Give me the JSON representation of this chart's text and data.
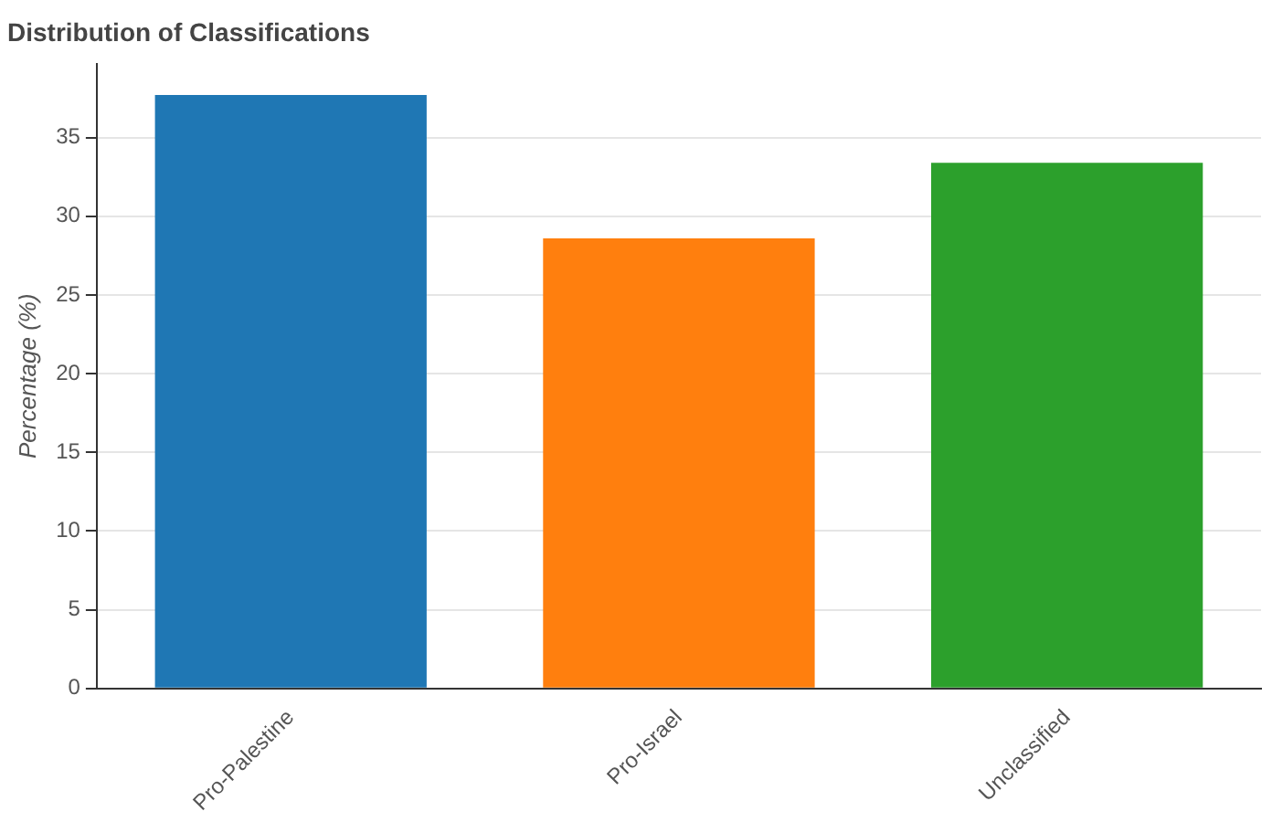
{
  "chart_data": {
    "type": "bar",
    "title": "Distribution of Classifications",
    "ylabel": "Percentage (%)",
    "categories": [
      "Pro-Palestine",
      "Pro-Israel",
      "Unclassified"
    ],
    "values": [
      37.7,
      28.6,
      33.4
    ],
    "colors": [
      "#1f77b4",
      "#ff7f0e",
      "#2ca02c"
    ],
    "ylim": [
      0,
      39.7
    ],
    "yticks": [
      0,
      5,
      10,
      15,
      20,
      25,
      30,
      35
    ],
    "grid": "y",
    "legend": false
  }
}
